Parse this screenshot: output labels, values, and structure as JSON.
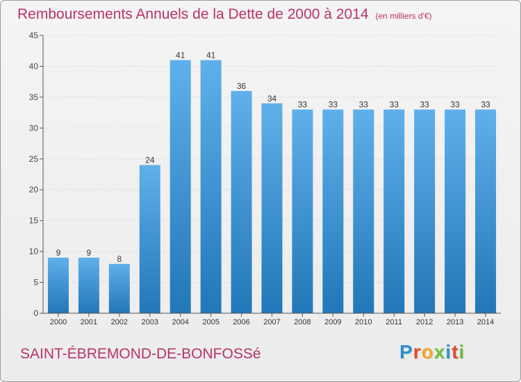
{
  "header": {
    "title": "Remboursements Annuels de la Dette de 2000 à 2014",
    "unit": "(en milliers d'€)"
  },
  "commune": "SAINT-ÉBREMOND-DE-BONFOSSé",
  "logo": {
    "text": "Proxiti",
    "letter_colors": [
      "#2f8fd1",
      "#e8482a",
      "#f5a623",
      "#6bbf3a",
      "#2f8fd1",
      "#e8482a",
      "#6bbf3a"
    ]
  },
  "colors": {
    "title": "#b8336a",
    "bar_top": "#5fb0ea",
    "bar_bottom": "#2277b8",
    "axis": "#555555",
    "grid": "#cfcfcf"
  },
  "chart_data": {
    "type": "bar",
    "categories": [
      "2000",
      "2001",
      "2002",
      "2003",
      "2004",
      "2005",
      "2006",
      "2007",
      "2008",
      "2009",
      "2010",
      "2011",
      "2012",
      "2013",
      "2014"
    ],
    "values": [
      9,
      9,
      8,
      24,
      41,
      41,
      36,
      34,
      33,
      33,
      33,
      33,
      33,
      33,
      33
    ],
    "title": "Remboursements Annuels de la Dette de 2000 à 2014",
    "xlabel": "",
    "ylabel": "",
    "ylim": [
      0,
      45
    ],
    "yticks": [
      0,
      5,
      10,
      15,
      20,
      25,
      30,
      35,
      40,
      45
    ],
    "grid": true,
    "data_labels": true
  }
}
